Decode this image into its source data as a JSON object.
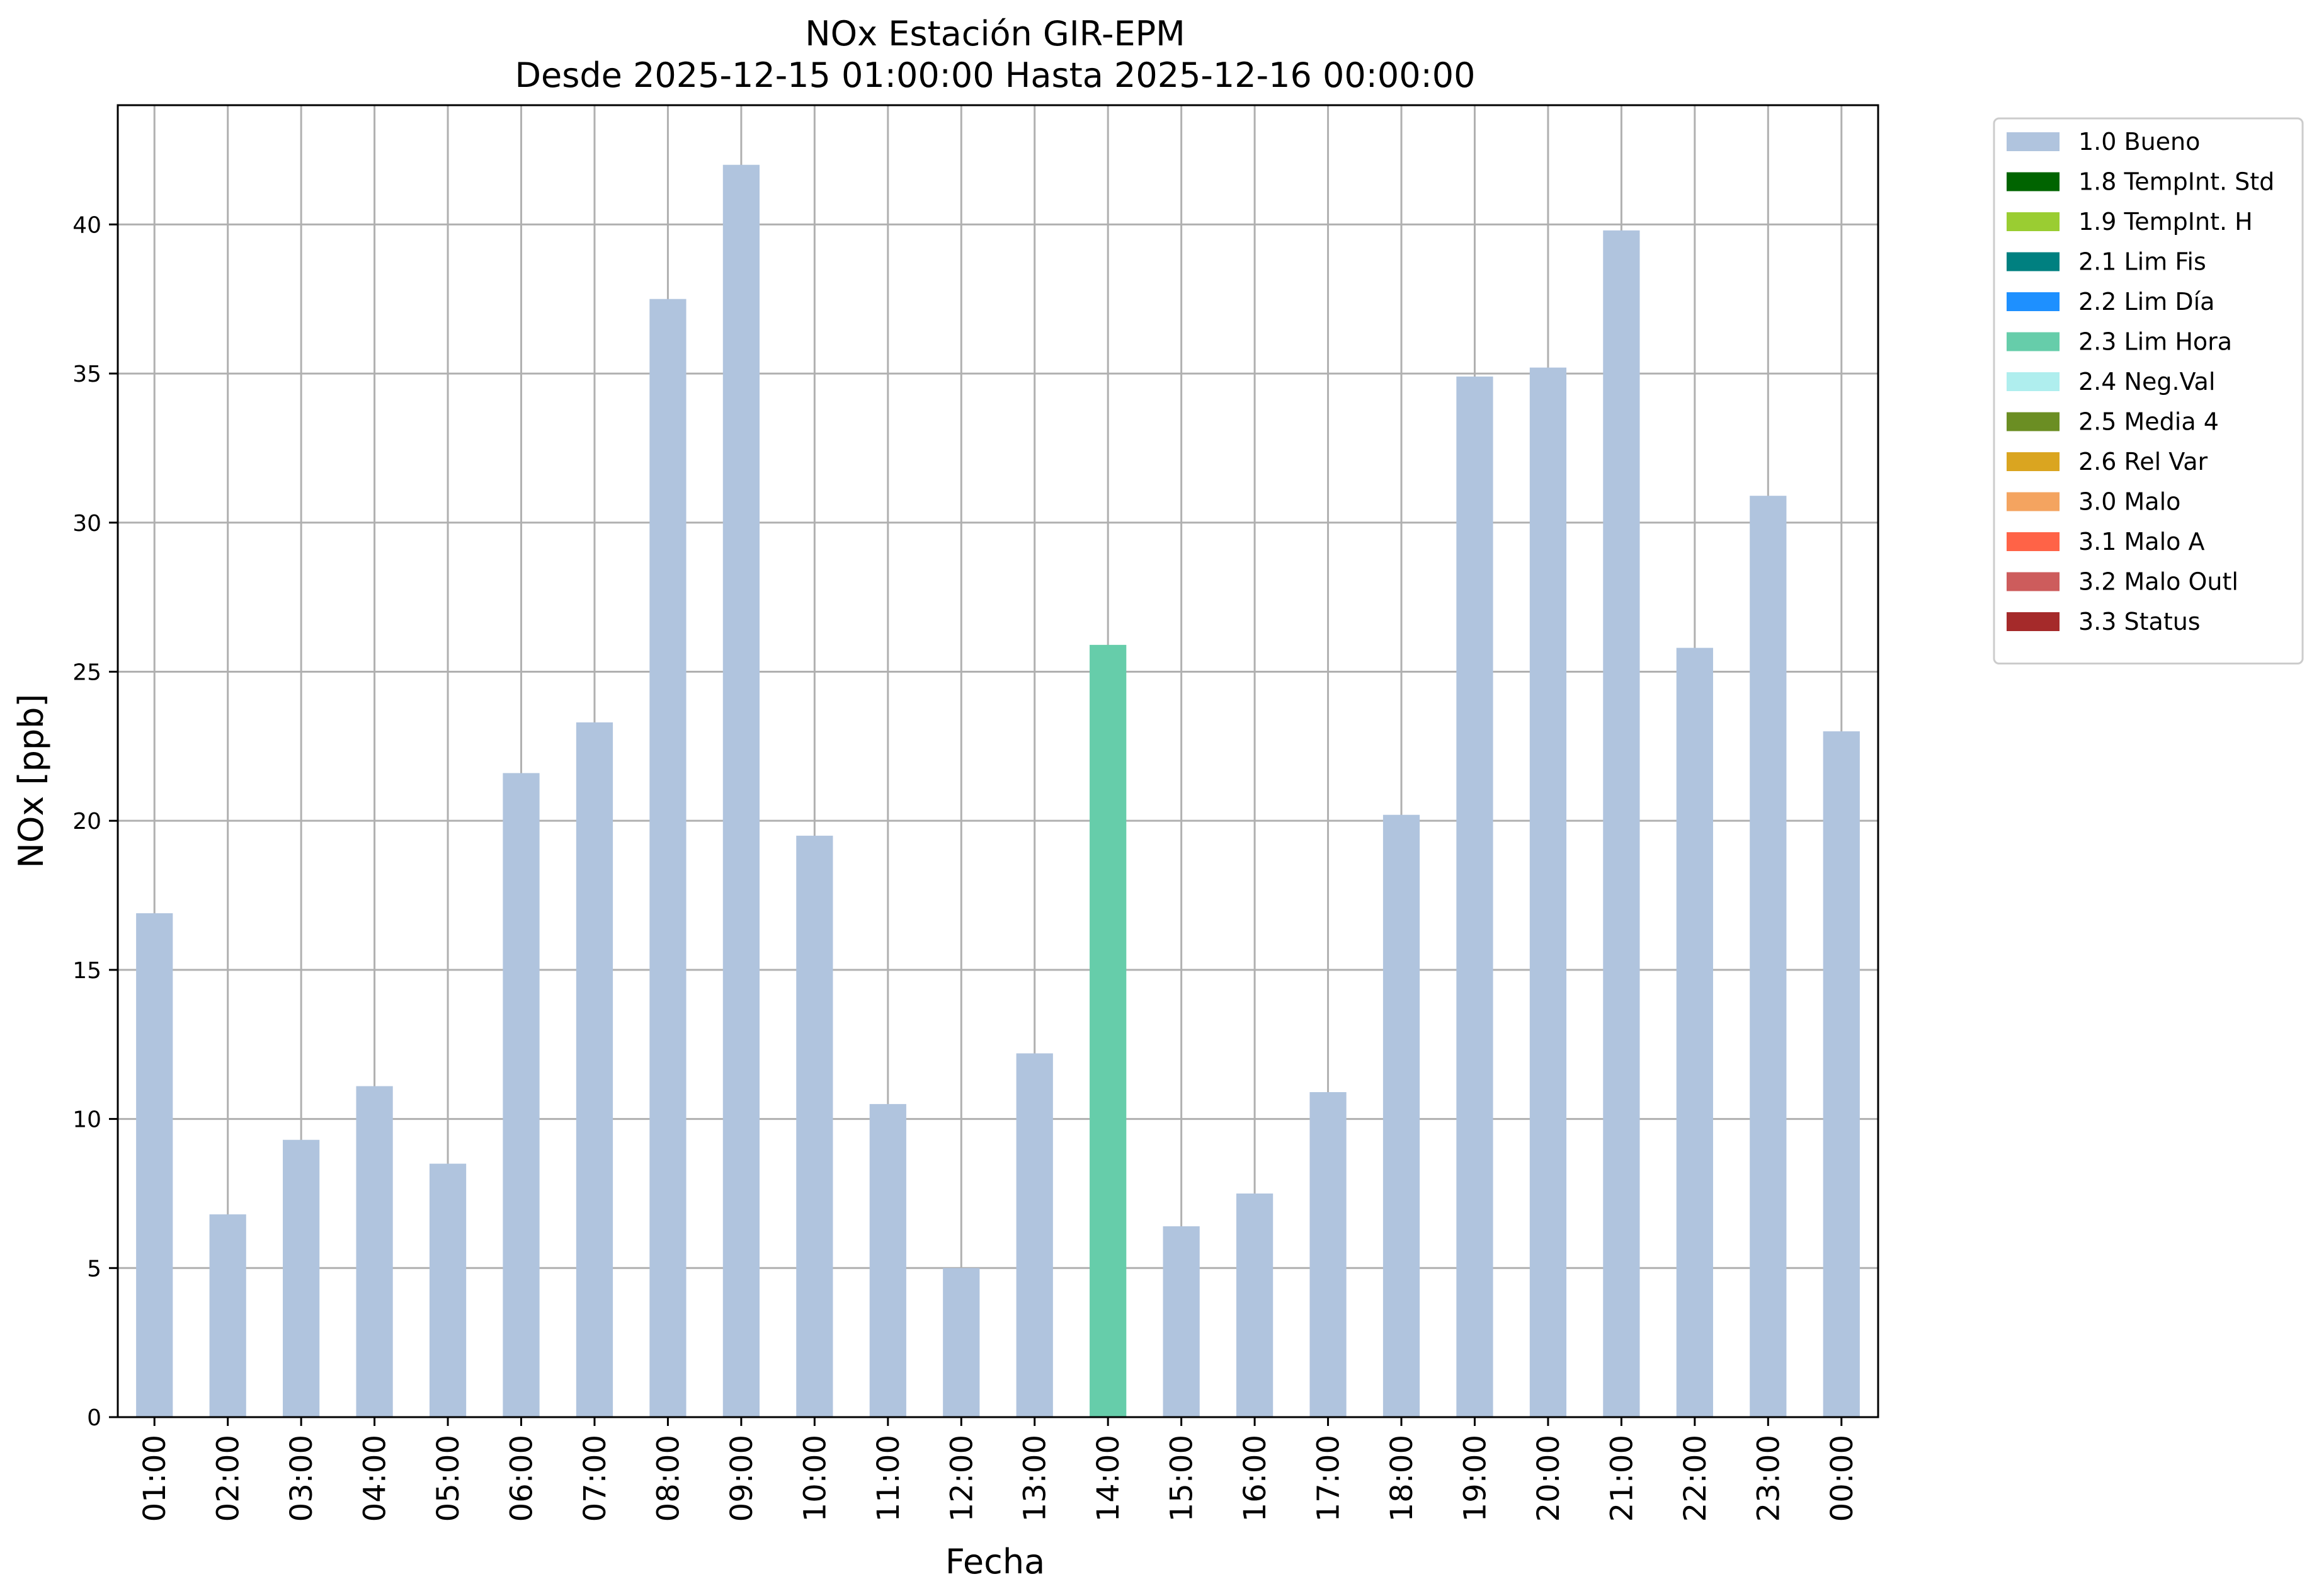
{
  "chart_data": {
    "type": "bar",
    "title": "NOx Estación GIR-EPM",
    "subtitle": "Desde 2025-12-15 01:00:00 Hasta 2025-12-16 00:00:00",
    "xlabel": "Fecha",
    "ylabel": "NOx [ppb]",
    "ylim": [
      0,
      44
    ],
    "yticks": [
      0,
      5,
      10,
      15,
      20,
      25,
      30,
      35,
      40
    ],
    "grid": true,
    "legend_position": "outside-top-right",
    "categories": [
      "01:00",
      "02:00",
      "03:00",
      "04:00",
      "05:00",
      "06:00",
      "07:00",
      "08:00",
      "09:00",
      "10:00",
      "11:00",
      "12:00",
      "13:00",
      "14:00",
      "15:00",
      "16:00",
      "17:00",
      "18:00",
      "19:00",
      "20:00",
      "21:00",
      "22:00",
      "23:00",
      "00:00"
    ],
    "values": [
      16.9,
      6.8,
      9.3,
      11.1,
      8.5,
      21.6,
      23.3,
      37.5,
      42.0,
      19.5,
      10.5,
      5.0,
      12.2,
      25.9,
      6.4,
      7.5,
      10.9,
      20.2,
      34.9,
      35.2,
      39.8,
      25.8,
      30.9,
      23.0
    ],
    "flags": [
      "1.0 Bueno",
      "1.0 Bueno",
      "1.0 Bueno",
      "1.0 Bueno",
      "1.0 Bueno",
      "1.0 Bueno",
      "1.0 Bueno",
      "1.0 Bueno",
      "1.0 Bueno",
      "1.0 Bueno",
      "1.0 Bueno",
      "1.0 Bueno",
      "1.0 Bueno",
      "2.3 Lim Hora",
      "1.0 Bueno",
      "1.0 Bueno",
      "1.0 Bueno",
      "1.0 Bueno",
      "1.0 Bueno",
      "1.0 Bueno",
      "1.0 Bueno",
      "1.0 Bueno",
      "1.0 Bueno",
      "1.0 Bueno"
    ],
    "legend": [
      {
        "label": "1.0 Bueno",
        "color": "#b0c4de"
      },
      {
        "label": "1.8 TempInt. Std",
        "color": "#006400"
      },
      {
        "label": "1.9 TempInt. H",
        "color": "#9acd32"
      },
      {
        "label": "2.1 Lim Fis",
        "color": "#008080"
      },
      {
        "label": "2.2 Lim Día",
        "color": "#1e90ff"
      },
      {
        "label": "2.3 Lim Hora",
        "color": "#66cdaa"
      },
      {
        "label": "2.4 Neg.Val",
        "color": "#afeeee"
      },
      {
        "label": "2.5 Media 4",
        "color": "#6b8e23"
      },
      {
        "label": "2.6 Rel Var",
        "color": "#daa520"
      },
      {
        "label": "3.0 Malo",
        "color": "#f4a460"
      },
      {
        "label": "3.1 Malo A",
        "color": "#ff6347"
      },
      {
        "label": "3.2 Malo Outl",
        "color": "#cd5c5c"
      },
      {
        "label": "3.3 Status",
        "color": "#a52a2a"
      }
    ]
  }
}
